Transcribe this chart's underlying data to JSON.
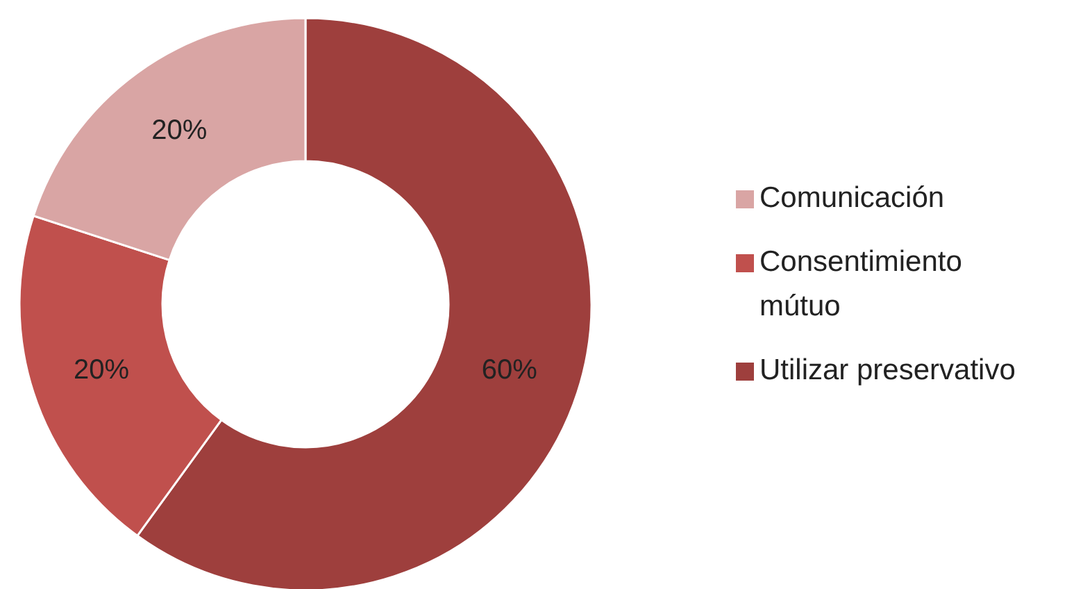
{
  "chart_data": {
    "type": "donut",
    "categories": [
      "Utilizar preservativo",
      "Consentimiento mútuo",
      "Comunicación"
    ],
    "values": [
      60,
      20,
      20
    ],
    "colors": [
      "#9e3f3d",
      "#c0504d",
      "#d9a5a4"
    ],
    "value_labels": [
      "60%",
      "20%",
      "20%"
    ],
    "legend": "right"
  }
}
